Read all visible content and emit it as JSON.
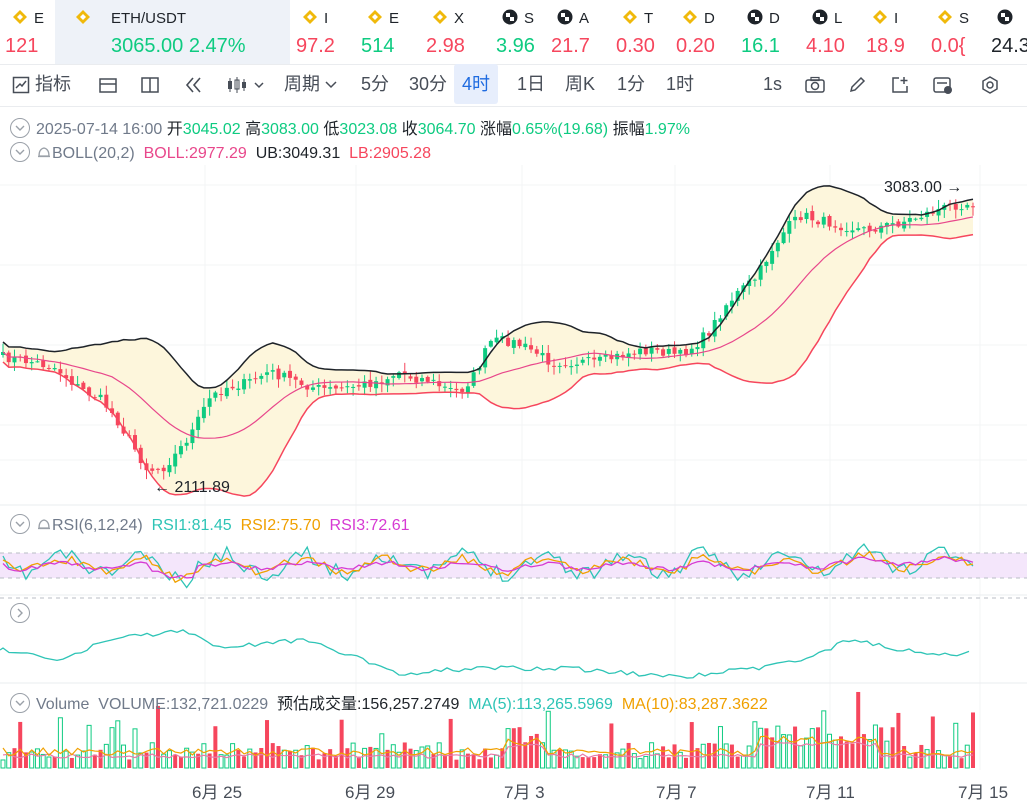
{
  "ticker": {
    "items": [
      {
        "name": "E",
        "price": "121",
        "dir": "dn",
        "icon": "binance-icon"
      },
      {
        "name": "ETH/USDT",
        "price": "3065.00",
        "change": "2.47%",
        "dir": "up",
        "icon": "binance-icon",
        "active": true
      },
      {
        "name": "I",
        "price": "97.2",
        "dir": "dn",
        "icon": "binance-icon"
      },
      {
        "name": "E",
        "price": "514",
        "dir": "up",
        "icon": "binance-icon"
      },
      {
        "name": "X",
        "price": "2.98",
        "dir": "dn",
        "icon": "binance-icon"
      },
      {
        "name": "S",
        "price": "3.96",
        "dir": "up",
        "icon": "checker-icon"
      },
      {
        "name": "A",
        "price": "21.7",
        "dir": "dn",
        "icon": "checker-icon"
      },
      {
        "name": "T",
        "price": "0.30",
        "dir": "dn",
        "icon": "binance-icon"
      },
      {
        "name": "D",
        "price": "0.20",
        "dir": "dn",
        "icon": "binance-icon"
      },
      {
        "name": "D",
        "price": "16.1",
        "dir": "up",
        "icon": "checker-icon"
      },
      {
        "name": "L",
        "price": "4.10",
        "dir": "dn",
        "icon": "checker-icon"
      },
      {
        "name": "I",
        "price": "18.9",
        "dir": "dn",
        "icon": "binance-icon"
      },
      {
        "name": "S",
        "price": "0.0{",
        "dir": "dn",
        "icon": "binance-icon"
      },
      {
        "name": "",
        "price": "24.3",
        "dir": "dark",
        "icon": "checker-icon"
      }
    ]
  },
  "toolbar": {
    "indicators_label": "指标",
    "period_label": "周期",
    "intervals": [
      "5分",
      "30分",
      "4时",
      "1日",
      "周K",
      "1分",
      "1时"
    ],
    "selected_interval": "4时",
    "speed_label": "1s"
  },
  "ohlc": {
    "datetime": "2025-07-14 16:00",
    "open_label": "开",
    "open": "3045.02",
    "high_label": "高",
    "high": "3083.00",
    "low_label": "低",
    "low": "3023.08",
    "close_label": "收",
    "close": "3064.70",
    "change_label": "涨幅",
    "change": "0.65%(19.68)",
    "amp_label": "振幅",
    "amp": "1.97%"
  },
  "boll": {
    "name": "BOLL(20,2)",
    "mid": "BOLL:2977.29",
    "ub": "UB:3049.31",
    "lb": "LB:2905.28"
  },
  "annotations": {
    "high": "3083.00",
    "low": "2111.89"
  },
  "rsi": {
    "name": "RSI(6,12,24)",
    "rsi1": "RSI1:81.45",
    "rsi2": "RSI2:75.70",
    "rsi3": "RSI3:72.61"
  },
  "volume": {
    "name": "Volume",
    "vol": "VOLUME:132,721.0229",
    "est": "预估成交量:156,257.2749",
    "ma5": "MA(5):113,265.5969",
    "ma10": "MA(10):83,287.3622"
  },
  "xaxis": [
    "6月 25",
    "6月 29",
    "7月 3",
    "7月 7",
    "7月 11",
    "7月 15"
  ],
  "colors": {
    "up": "#0ecb81",
    "down": "#f6465d",
    "boll_mid": "#e8478b",
    "bands": "#1e2329",
    "band_fill": "#fdf6dc",
    "rsi1": "#2ec4b6",
    "rsi2": "#f0a000",
    "rsi3": "#d63ad3",
    "ma5": "#f0a000",
    "ma10": "#e87aa8"
  }
}
